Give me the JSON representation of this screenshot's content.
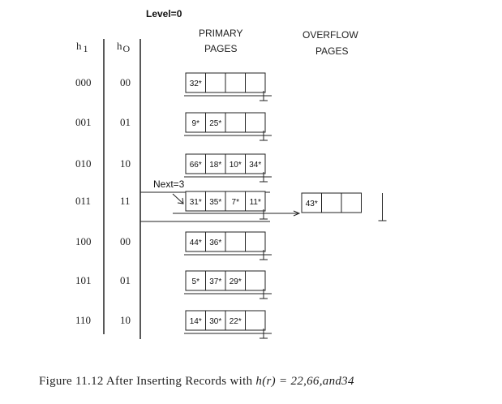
{
  "level_label": "Level=0",
  "headers": {
    "h1": "h",
    "h1_sub": "1",
    "h0": "h",
    "h0_sub": "O",
    "primary_line1": "PRIMARY",
    "primary_line2": "PAGES",
    "overflow_line1": "OVERFLOW",
    "overflow_line2": "PAGES"
  },
  "next_label": "Next=3",
  "rows": [
    {
      "h1": "000",
      "h0": "00",
      "cells": [
        "32*",
        "",
        "",
        ""
      ]
    },
    {
      "h1": "001",
      "h0": "01",
      "cells": [
        "9*",
        "25*",
        "",
        ""
      ]
    },
    {
      "h1": "010",
      "h0": "10",
      "cells": [
        "66*",
        "18*",
        "10*",
        "34*"
      ]
    },
    {
      "h1": "011",
      "h0": "11",
      "cells": [
        "31*",
        "35*",
        "7*",
        "11*"
      ]
    },
    {
      "h1": "100",
      "h0": "00",
      "cells": [
        "44*",
        "36*",
        "",
        ""
      ]
    },
    {
      "h1": "101",
      "h0": "01",
      "cells": [
        "5*",
        "37*",
        "29*",
        ""
      ]
    },
    {
      "h1": "110",
      "h0": "10",
      "cells": [
        "14*",
        "30*",
        "22*",
        ""
      ]
    }
  ],
  "overflow": {
    "row": "011",
    "cells": [
      "43*",
      "",
      "",
      ""
    ]
  },
  "caption": {
    "prefix": "Figure 11.12   After Inserting Records with ",
    "formula": "h(r) = 22,66,and34"
  }
}
